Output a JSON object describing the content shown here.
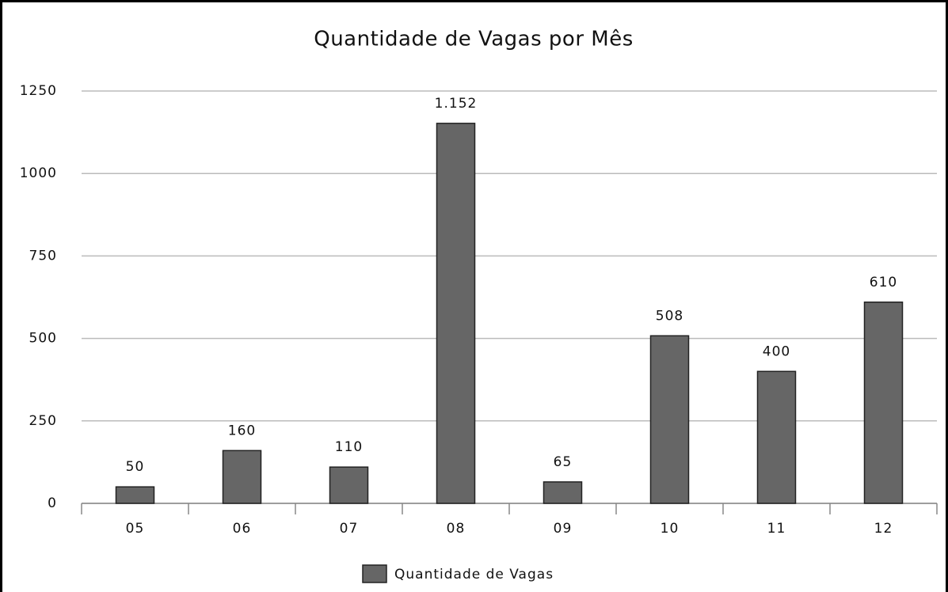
{
  "chart_data": {
    "type": "bar",
    "title": "Quantidade de Vagas por Mês",
    "categories": [
      "05",
      "06",
      "07",
      "08",
      "09",
      "10",
      "11",
      "12"
    ],
    "series": [
      {
        "name": "Quantidade de Vagas",
        "color": "#666666",
        "values": [
          50,
          160,
          110,
          1152,
          65,
          508,
          400,
          610
        ],
        "value_labels": [
          "50",
          "160",
          "110",
          "1.152",
          "65",
          "508",
          "400",
          "610"
        ]
      }
    ],
    "ylim": [
      0,
      1250
    ],
    "yticks": [
      0,
      250,
      500,
      750,
      1000,
      1250
    ],
    "grid": true,
    "legend": "bottom"
  }
}
